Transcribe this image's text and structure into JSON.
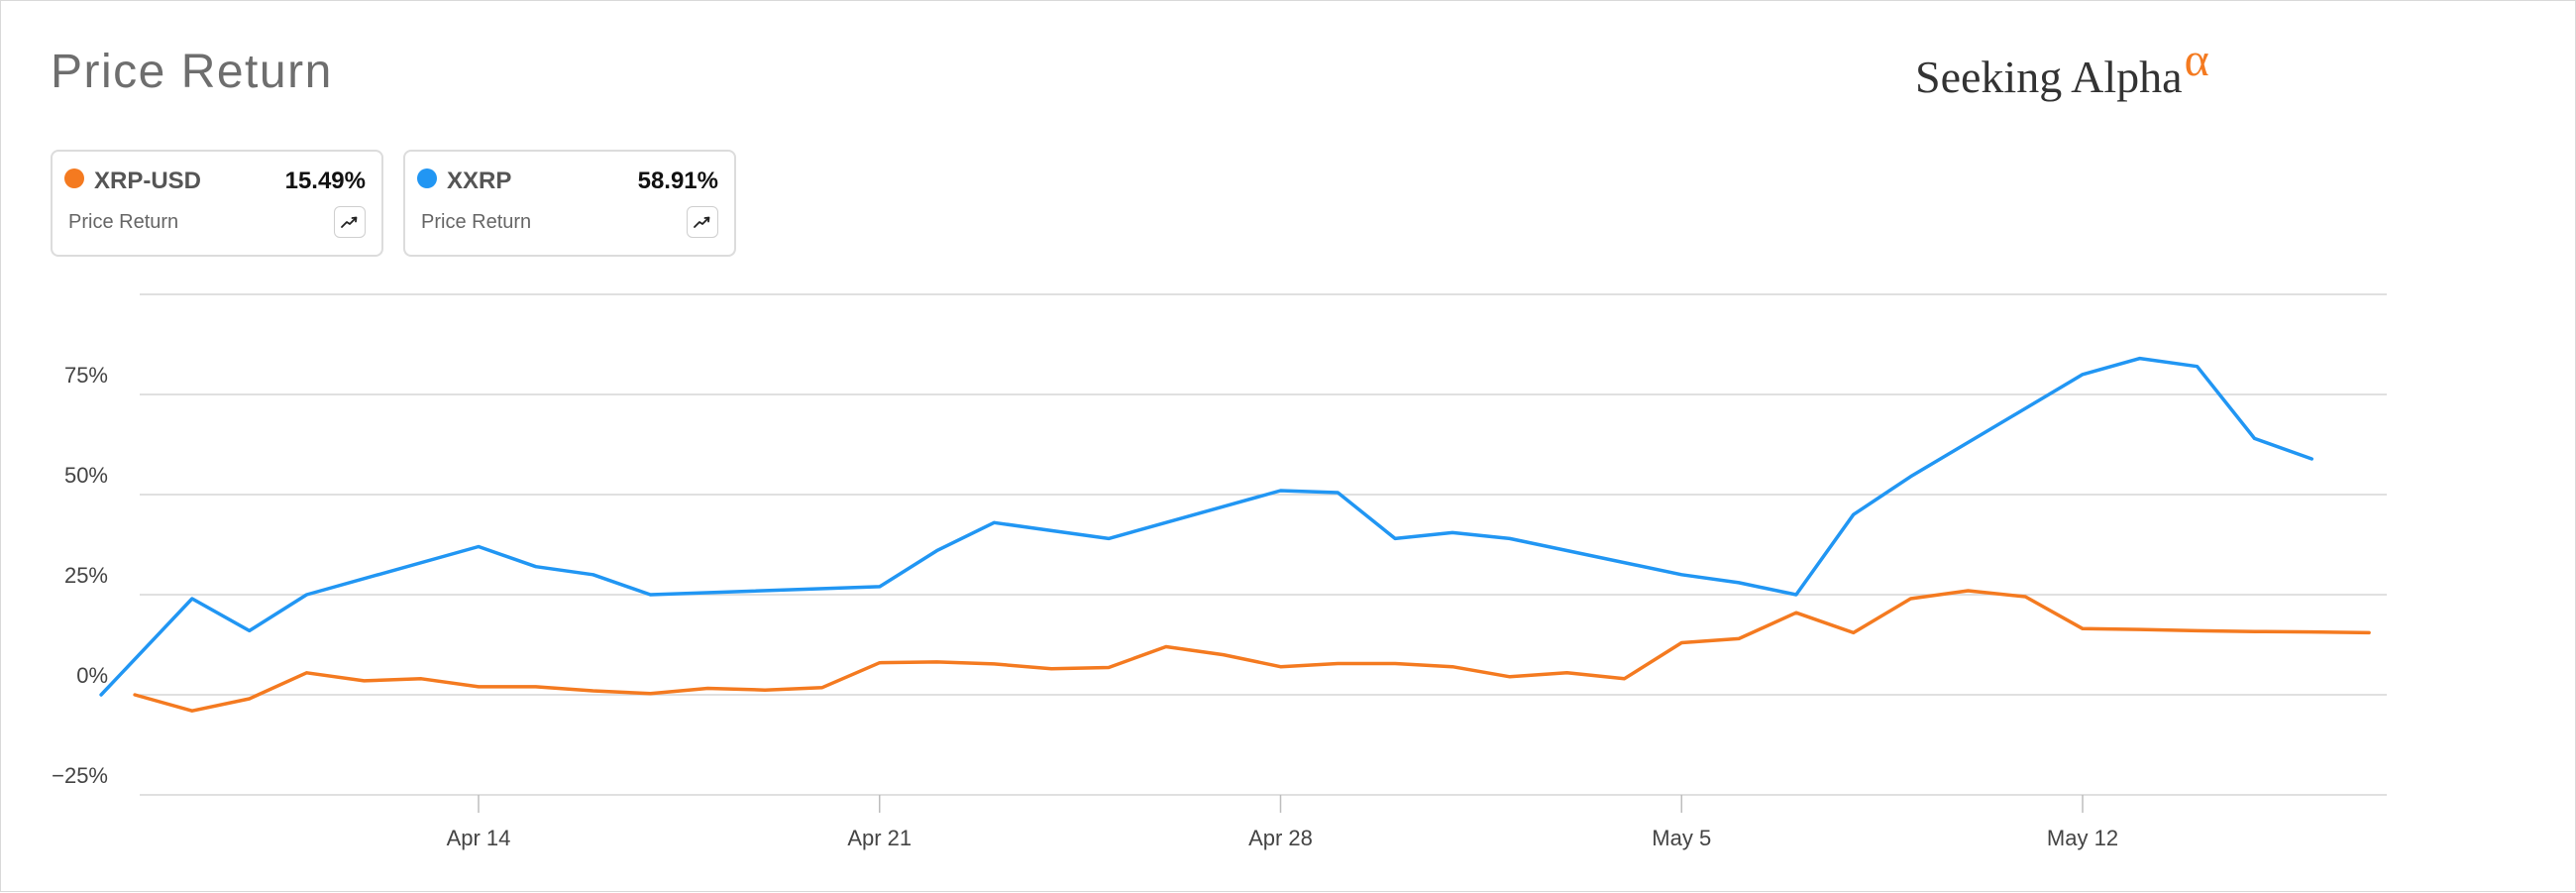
{
  "header": {
    "title": "Price Return",
    "logo_text": "Seeking Alpha",
    "logo_symbol": "α"
  },
  "legend": [
    {
      "ticker": "XRP-USD",
      "value": "15.49%",
      "sublabel": "Price Return",
      "color": "#f47a20",
      "icon": "trend-chart-icon"
    },
    {
      "ticker": "XXRP",
      "value": "58.91%",
      "sublabel": "Price Return",
      "color": "#2196f3",
      "icon": "trend-chart-icon"
    }
  ],
  "chart_data": {
    "type": "line",
    "title": "",
    "xlabel": "",
    "ylabel": "",
    "ylim": [
      -0.25,
      1.0
    ],
    "y_ticks": [
      {
        "value": -0.25,
        "label": "−25%"
      },
      {
        "value": 0,
        "label": "0%"
      },
      {
        "value": 0.25,
        "label": "25%"
      },
      {
        "value": 0.5,
        "label": "50%"
      },
      {
        "value": 0.75,
        "label": "75%"
      }
    ],
    "x_ticks": [
      "Apr 14",
      "Apr 21",
      "Apr 28",
      "May 5",
      "May 12"
    ],
    "grid": true,
    "series": [
      {
        "name": "XXRP",
        "color": "#2196f3",
        "x": [
          "2025-04-08",
          "2025-04-09",
          "2025-04-10",
          "2025-04-11",
          "2025-04-14",
          "2025-04-15",
          "2025-04-16",
          "2025-04-17",
          "2025-04-21",
          "2025-04-22",
          "2025-04-23",
          "2025-04-24",
          "2025-04-25",
          "2025-04-28",
          "2025-04-29",
          "2025-04-30",
          "2025-05-01",
          "2025-05-02",
          "2025-05-05",
          "2025-05-06",
          "2025-05-07",
          "2025-05-08",
          "2025-05-09",
          "2025-05-12",
          "2025-05-13",
          "2025-05-14",
          "2025-05-15",
          "2025-05-16"
        ],
        "values": [
          0.0,
          0.24,
          0.16,
          0.25,
          0.37,
          0.32,
          0.3,
          0.25,
          0.27,
          0.36,
          0.43,
          0.41,
          0.39,
          0.51,
          0.505,
          0.39,
          0.405,
          0.39,
          0.3,
          0.28,
          0.25,
          0.45,
          0.545,
          0.8,
          0.84,
          0.82,
          0.64,
          0.589
        ]
      },
      {
        "name": "XRP-USD",
        "color": "#f47a20",
        "x": [
          "2025-04-08",
          "2025-04-09",
          "2025-04-10",
          "2025-04-11",
          "2025-04-12",
          "2025-04-13",
          "2025-04-14",
          "2025-04-15",
          "2025-04-16",
          "2025-04-17",
          "2025-04-18",
          "2025-04-19",
          "2025-04-20",
          "2025-04-21",
          "2025-04-22",
          "2025-04-23",
          "2025-04-24",
          "2025-04-25",
          "2025-04-26",
          "2025-04-27",
          "2025-04-28",
          "2025-04-29",
          "2025-04-30",
          "2025-05-01",
          "2025-05-02",
          "2025-05-03",
          "2025-05-04",
          "2025-05-05",
          "2025-05-06",
          "2025-05-07",
          "2025-05-08",
          "2025-05-09",
          "2025-05-10",
          "2025-05-11",
          "2025-05-12",
          "2025-05-13",
          "2025-05-14",
          "2025-05-15",
          "2025-05-16",
          "2025-05-17"
        ],
        "values": [
          0.0,
          -0.04,
          -0.01,
          0.055,
          0.035,
          0.04,
          0.02,
          0.02,
          0.01,
          0.003,
          0.016,
          0.012,
          0.018,
          0.08,
          0.082,
          0.077,
          0.065,
          0.068,
          0.12,
          0.1,
          0.07,
          0.078,
          0.078,
          0.07,
          0.045,
          0.055,
          0.04,
          0.13,
          0.14,
          0.205,
          0.155,
          0.24,
          0.26,
          0.245,
          0.165,
          0.163,
          0.16,
          0.158,
          0.157,
          0.1549
        ]
      }
    ]
  }
}
